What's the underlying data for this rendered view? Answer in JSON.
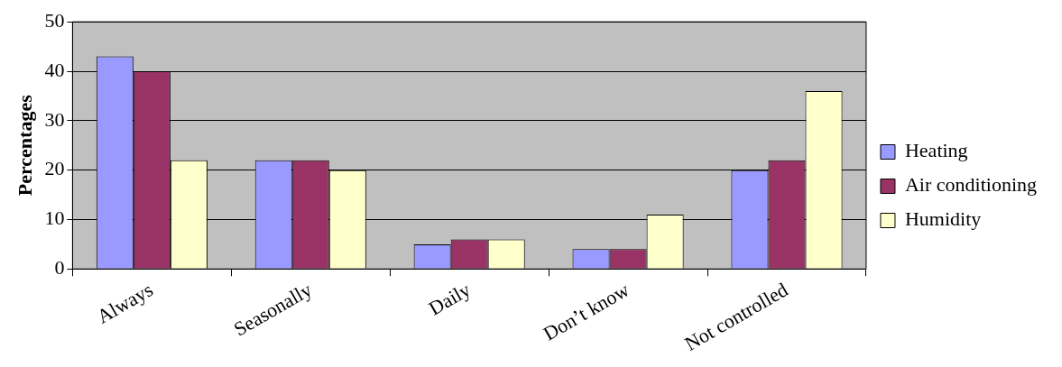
{
  "chart_data": {
    "type": "bar",
    "ylabel": "Percentages",
    "categories": [
      "Always",
      "Seasonally",
      "Daily",
      "Don’t know",
      "Not controlled"
    ],
    "series": [
      {
        "name": "Heating",
        "color": "#9999ff",
        "values": [
          43,
          22,
          5,
          4,
          20
        ]
      },
      {
        "name": "Air conditioning",
        "color": "#993366",
        "values": [
          40,
          22,
          6,
          4,
          22
        ]
      },
      {
        "name": "Humidity",
        "color": "#ffffcc",
        "values": [
          22,
          20,
          6,
          11,
          36
        ]
      }
    ],
    "ylim": [
      0,
      50
    ],
    "yticks": [
      0,
      10,
      20,
      30,
      40,
      50
    ],
    "grid": "y",
    "legend": "right"
  }
}
